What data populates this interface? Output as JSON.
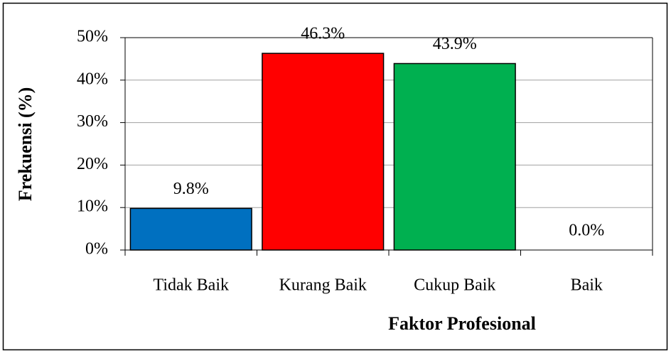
{
  "chart_data": {
    "type": "bar",
    "categories": [
      "Tidak Baik",
      "Kurang Baik",
      "Cukup Baik",
      "Baik"
    ],
    "values": [
      9.8,
      46.3,
      43.9,
      0.0
    ],
    "value_labels": [
      "9.8%",
      "46.3%",
      "43.9%",
      "0.0%"
    ],
    "colors": [
      "#0070c0",
      "#ff0000",
      "#00b050",
      "#7f7f7f"
    ],
    "xlabel": "Faktor Profesional",
    "ylabel": "Frekuensi (%)",
    "ylim": [
      0,
      50
    ],
    "yticks": [
      {
        "value": 0,
        "label": "0%"
      },
      {
        "value": 10,
        "label": "10%"
      },
      {
        "value": 20,
        "label": "20%"
      },
      {
        "value": 30,
        "label": "30%"
      },
      {
        "value": 40,
        "label": "40%"
      },
      {
        "value": 50,
        "label": "50%"
      }
    ],
    "grid": true
  }
}
